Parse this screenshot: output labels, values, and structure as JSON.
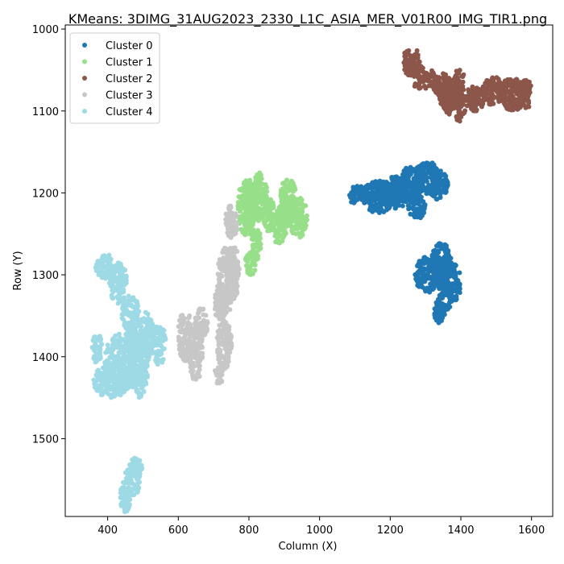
{
  "chart_data": {
    "type": "scatter",
    "title": "KMeans: 3DIMG_31AUG2023_2330_L1C_ASIA_MER_V01R00_IMG_TIR1.png",
    "xlabel": "Column (X)",
    "ylabel": "Row (Y)",
    "xlim": [
      280,
      1660
    ],
    "ylim": [
      1595,
      995
    ],
    "y_inverted": true,
    "xticks": [
      400,
      600,
      800,
      1000,
      1200,
      1400,
      1600
    ],
    "yticks": [
      1000,
      1100,
      1200,
      1300,
      1400,
      1500
    ],
    "grid": false,
    "legend_position": "top-left",
    "series": [
      {
        "name": "Cluster 0",
        "color": "#1f77b4",
        "blobs": [
          {
            "cx": 1110,
            "cy": 1203,
            "rx": 30,
            "ry": 12
          },
          {
            "cx": 1165,
            "cy": 1205,
            "rx": 45,
            "ry": 20
          },
          {
            "cx": 1215,
            "cy": 1200,
            "rx": 40,
            "ry": 20
          },
          {
            "cx": 1260,
            "cy": 1190,
            "rx": 42,
            "ry": 22
          },
          {
            "cx": 1305,
            "cy": 1182,
            "rx": 40,
            "ry": 20
          },
          {
            "cx": 1335,
            "cy": 1190,
            "rx": 28,
            "ry": 18
          },
          {
            "cx": 1275,
            "cy": 1218,
            "rx": 25,
            "ry": 14
          },
          {
            "cx": 1305,
            "cy": 1300,
            "rx": 35,
            "ry": 22
          },
          {
            "cx": 1345,
            "cy": 1290,
            "rx": 30,
            "ry": 30
          },
          {
            "cx": 1375,
            "cy": 1310,
            "rx": 25,
            "ry": 25
          },
          {
            "cx": 1355,
            "cy": 1325,
            "rx": 20,
            "ry": 20
          },
          {
            "cx": 1340,
            "cy": 1345,
            "rx": 15,
            "ry": 15
          }
        ]
      },
      {
        "name": "Cluster 1",
        "color": "#98df8a",
        "blobs": [
          {
            "cx": 795,
            "cy": 1218,
            "rx": 28,
            "ry": 35
          },
          {
            "cx": 830,
            "cy": 1205,
            "rx": 22,
            "ry": 30
          },
          {
            "cx": 855,
            "cy": 1225,
            "rx": 18,
            "ry": 22
          },
          {
            "cx": 885,
            "cy": 1240,
            "rx": 22,
            "ry": 22
          },
          {
            "cx": 910,
            "cy": 1212,
            "rx": 25,
            "ry": 30
          },
          {
            "cx": 940,
            "cy": 1230,
            "rx": 25,
            "ry": 25
          },
          {
            "cx": 820,
            "cy": 1262,
            "rx": 15,
            "ry": 20
          },
          {
            "cx": 805,
            "cy": 1285,
            "rx": 15,
            "ry": 15
          }
        ]
      },
      {
        "name": "Cluster 2",
        "color": "#8c564b",
        "blobs": [
          {
            "cx": 1260,
            "cy": 1040,
            "rx": 25,
            "ry": 18
          },
          {
            "cx": 1280,
            "cy": 1058,
            "rx": 18,
            "ry": 15
          },
          {
            "cx": 1310,
            "cy": 1062,
            "rx": 25,
            "ry": 12
          },
          {
            "cx": 1345,
            "cy": 1068,
            "rx": 25,
            "ry": 15
          },
          {
            "cx": 1370,
            "cy": 1082,
            "rx": 30,
            "ry": 22
          },
          {
            "cx": 1395,
            "cy": 1092,
            "rx": 18,
            "ry": 22
          },
          {
            "cx": 1395,
            "cy": 1065,
            "rx": 15,
            "ry": 18
          },
          {
            "cx": 1440,
            "cy": 1085,
            "rx": 30,
            "ry": 15
          },
          {
            "cx": 1490,
            "cy": 1075,
            "rx": 30,
            "ry": 18
          },
          {
            "cx": 1545,
            "cy": 1080,
            "rx": 38,
            "ry": 20
          },
          {
            "cx": 1585,
            "cy": 1080,
            "rx": 18,
            "ry": 18
          }
        ]
      },
      {
        "name": "Cluster 3",
        "color": "#c7c7c7",
        "blobs": [
          {
            "cx": 750,
            "cy": 1235,
            "rx": 18,
            "ry": 20
          },
          {
            "cx": 740,
            "cy": 1305,
            "rx": 30,
            "ry": 40
          },
          {
            "cx": 755,
            "cy": 1290,
            "rx": 18,
            "ry": 25
          },
          {
            "cx": 720,
            "cy": 1335,
            "rx": 20,
            "ry": 20
          },
          {
            "cx": 730,
            "cy": 1385,
            "rx": 22,
            "ry": 30
          },
          {
            "cx": 715,
            "cy": 1420,
            "rx": 12,
            "ry": 15
          },
          {
            "cx": 620,
            "cy": 1375,
            "rx": 22,
            "ry": 30
          },
          {
            "cx": 650,
            "cy": 1395,
            "rx": 20,
            "ry": 35
          },
          {
            "cx": 665,
            "cy": 1360,
            "rx": 18,
            "ry": 20
          }
        ]
      },
      {
        "name": "Cluster 4",
        "color": "#9edae5",
        "blobs": [
          {
            "cx": 395,
            "cy": 1290,
            "rx": 30,
            "ry": 15
          },
          {
            "cx": 430,
            "cy": 1310,
            "rx": 25,
            "ry": 25
          },
          {
            "cx": 465,
            "cy": 1350,
            "rx": 25,
            "ry": 25
          },
          {
            "cx": 510,
            "cy": 1375,
            "rx": 20,
            "ry": 30
          },
          {
            "cx": 450,
            "cy": 1405,
            "rx": 60,
            "ry": 35
          },
          {
            "cx": 410,
            "cy": 1430,
            "rx": 50,
            "ry": 20
          },
          {
            "cx": 490,
            "cy": 1410,
            "rx": 25,
            "ry": 40
          },
          {
            "cx": 545,
            "cy": 1385,
            "rx": 20,
            "ry": 25
          },
          {
            "cx": 370,
            "cy": 1390,
            "rx": 15,
            "ry": 18
          },
          {
            "cx": 470,
            "cy": 1550,
            "rx": 22,
            "ry": 20
          },
          {
            "cx": 450,
            "cy": 1570,
            "rx": 15,
            "ry": 20
          },
          {
            "cx": 480,
            "cy": 1535,
            "rx": 18,
            "ry": 12
          }
        ]
      }
    ]
  }
}
